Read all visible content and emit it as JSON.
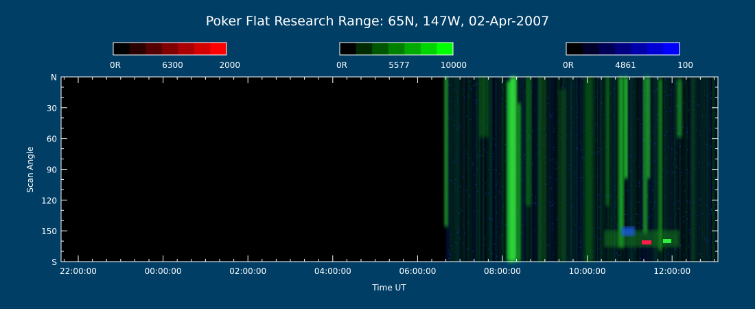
{
  "colors": {
    "background": "#003e66",
    "axis": "#ffffff",
    "panel": "#000000"
  },
  "chart_data": {
    "type": "heatmap",
    "title": "Poker Flat Research Range: 65N, 147W, 02-Apr-2007",
    "xlabel": "Time UT",
    "ylabel": "Scan Angle",
    "x_ticks": [
      "22:00:00",
      "00:00:00",
      "02:00:00",
      "04:00:00",
      "06:00:00",
      "08:00:00",
      "10:00:00",
      "12:00:00"
    ],
    "y_ticks": [
      "N",
      "30",
      "60",
      "90",
      "120",
      "150",
      "S"
    ],
    "y_range": [
      0,
      180
    ],
    "data_start_time": "06:40:00",
    "colorbars": [
      {
        "wavelength": "6300",
        "min_label": "0R",
        "max_label": "2000",
        "min": 0,
        "max": 2000,
        "color": "#ff0000",
        "swatches": [
          "#000000",
          "#2a0000",
          "#550000",
          "#800000",
          "#aa0000",
          "#d40000",
          "#ff0000"
        ]
      },
      {
        "wavelength": "5577",
        "min_label": "0R",
        "max_label": "10000",
        "min": 0,
        "max": 10000,
        "color": "#00ff00",
        "swatches": [
          "#000000",
          "#002a00",
          "#005500",
          "#008000",
          "#00aa00",
          "#00d400",
          "#00ff00"
        ]
      },
      {
        "wavelength": "4861",
        "min_label": "0R",
        "max_label": "100",
        "min": 0,
        "max": 100,
        "color": "#0000ff",
        "swatches": [
          "#000000",
          "#00002a",
          "#000055",
          "#000080",
          "#0000aa",
          "#0000d4",
          "#0000ff"
        ]
      }
    ]
  }
}
